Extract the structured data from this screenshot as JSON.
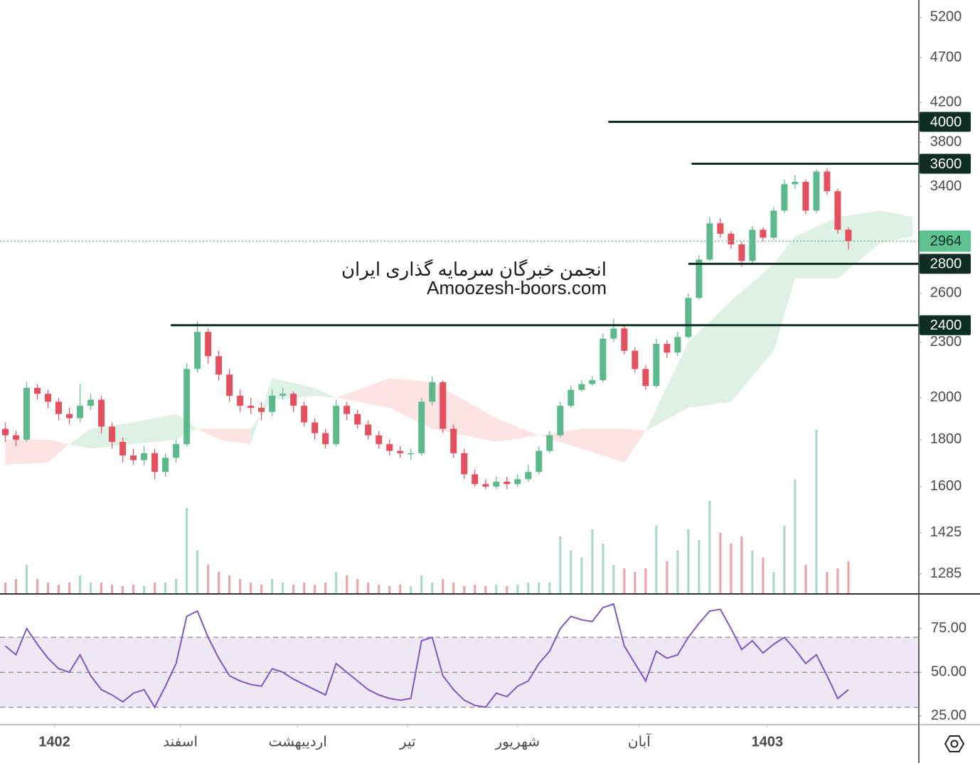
{
  "chart_data": {
    "type": "candlestick",
    "watermark": [
      "انجمن خبرگان سرمایه گذاری ایران",
      "Amoozesh-boors.com"
    ],
    "log_scale": true,
    "ylim": [
      1224,
      5432
    ],
    "yticks": [
      5200,
      4700,
      4200,
      3800,
      3400,
      2600,
      2300,
      2000,
      1800,
      1600,
      1425,
      1285
    ],
    "xlim": [
      -0.5,
      85.6
    ],
    "xticks": [
      {
        "value": 4.6,
        "label": "1402"
      },
      {
        "value": 16.4,
        "label": "اسفند"
      },
      {
        "value": 27.4,
        "label": "اردیبهشت"
      },
      {
        "value": 37.7,
        "label": "تیر"
      },
      {
        "value": 48,
        "label": "شهریور"
      },
      {
        "value": 59.4,
        "label": "آبان"
      },
      {
        "value": 71.4,
        "label": "1403"
      }
    ],
    "up_color": "#5bb98c",
    "down_color": "#e5505f",
    "open": [
      1850,
      1820,
      1800,
      2050,
      2020,
      1980,
      1920,
      1900,
      1960,
      1990,
      1860,
      1790,
      1730,
      1710,
      1740,
      1660,
      1720,
      1780,
      2150,
      2360,
      2220,
      2120,
      2010,
      1960,
      1950,
      1930,
      2010,
      2020,
      1960,
      1880,
      1830,
      1780,
      1960,
      1920,
      1870,
      1820,
      1780,
      1750,
      1740,
      1740,
      1980,
      2080,
      1850,
      1740,
      1650,
      1610,
      1600,
      1620,
      1610,
      1630,
      1660,
      1750,
      1820,
      1960,
      2040,
      2070,
      2090,
      2320,
      2380,
      2250,
      2150,
      2060,
      2290,
      2240,
      2330,
      2570,
      2830,
      3100,
      3020,
      2940,
      2820,
      3050,
      2990,
      3200,
      3420,
      3440,
      3200,
      3530,
      3360,
      3050
    ],
    "high": [
      1880,
      1840,
      2080,
      2070,
      2040,
      2000,
      1950,
      2070,
      2020,
      2010,
      1880,
      1810,
      1760,
      1770,
      1760,
      1740,
      1800,
      2180,
      2420,
      2380,
      2250,
      2150,
      2040,
      2000,
      1980,
      2040,
      2050,
      2030,
      1980,
      1900,
      1850,
      1990,
      1980,
      1940,
      1890,
      1840,
      1800,
      1770,
      1760,
      2000,
      2110,
      2090,
      1870,
      1760,
      1670,
      1630,
      1640,
      1640,
      1650,
      1690,
      1770,
      1840,
      1980,
      2060,
      2090,
      2110,
      2350,
      2440,
      2400,
      2270,
      2170,
      2320,
      2310,
      2360,
      2600,
      2860,
      3150,
      3140,
      3040,
      2960,
      3080,
      3070,
      3230,
      3460,
      3500,
      3460,
      3550,
      3560,
      3380,
      3070
    ],
    "low": [
      1790,
      1770,
      1790,
      1990,
      1950,
      1890,
      1870,
      1880,
      1940,
      1830,
      1760,
      1700,
      1690,
      1690,
      1630,
      1640,
      1700,
      1770,
      2130,
      2180,
      2090,
      1980,
      1930,
      1920,
      1890,
      1910,
      1990,
      1930,
      1860,
      1800,
      1760,
      1770,
      1890,
      1850,
      1800,
      1760,
      1730,
      1720,
      1710,
      1730,
      1960,
      1830,
      1720,
      1630,
      1600,
      1590,
      1590,
      1590,
      1600,
      1620,
      1650,
      1740,
      1810,
      1950,
      2030,
      2060,
      2080,
      2300,
      2230,
      2130,
      2040,
      2050,
      2210,
      2220,
      2320,
      2560,
      2820,
      2990,
      2910,
      2780,
      2800,
      2960,
      2970,
      3180,
      3380,
      3170,
      3180,
      3330,
      3020,
      2900
    ],
    "close": [
      1820,
      1800,
      2050,
      2020,
      1980,
      1920,
      1900,
      1960,
      1990,
      1860,
      1790,
      1730,
      1710,
      1740,
      1660,
      1720,
      1780,
      2150,
      2360,
      2220,
      2120,
      2010,
      1960,
      1950,
      1930,
      2010,
      2020,
      1960,
      1880,
      1830,
      1780,
      1960,
      1920,
      1870,
      1820,
      1780,
      1750,
      1740,
      1740,
      1980,
      2080,
      1850,
      1740,
      1650,
      1610,
      1600,
      1620,
      1610,
      1630,
      1660,
      1750,
      1820,
      1960,
      2040,
      2070,
      2090,
      2320,
      2380,
      2250,
      2150,
      2060,
      2290,
      2240,
      2330,
      2570,
      2830,
      3100,
      3020,
      2940,
      2820,
      3050,
      2990,
      3200,
      3420,
      3440,
      3200,
      3530,
      3360,
      3050,
      2964
    ],
    "volume": [
      15,
      20,
      40,
      20,
      15,
      12,
      15,
      25,
      15,
      15,
      12,
      10,
      12,
      10,
      15,
      15,
      20,
      120,
      60,
      40,
      30,
      25,
      20,
      15,
      12,
      20,
      15,
      12,
      15,
      12,
      15,
      30,
      25,
      20,
      15,
      12,
      10,
      12,
      10,
      25,
      15,
      20,
      15,
      10,
      12,
      10,
      12,
      10,
      12,
      15,
      15,
      15,
      80,
      60,
      50,
      90,
      70,
      40,
      35,
      30,
      35,
      95,
      45,
      60,
      90,
      75,
      130,
      85,
      70,
      80,
      60,
      50,
      30,
      95,
      160,
      40,
      230,
      30,
      35,
      45
    ],
    "cloud": {
      "x": [
        0,
        4,
        6,
        8,
        12,
        16,
        18,
        20,
        23,
        25,
        29,
        31,
        36,
        40,
        46,
        50,
        54,
        58,
        60,
        64,
        68,
        72,
        74,
        78,
        82,
        85
      ],
      "span_a": [
        1690,
        1700,
        1780,
        1850,
        1880,
        1920,
        1850,
        1800,
        1780,
        2100,
        2050,
        2000,
        1950,
        1850,
        1790,
        1820,
        1760,
        1700,
        1840,
        2300,
        2550,
        2800,
        3000,
        3150,
        3200,
        3150
      ],
      "span_b": [
        1800,
        1800,
        1780,
        1760,
        1780,
        1800,
        1850,
        1850,
        1850,
        1990,
        2010,
        2000,
        2100,
        2080,
        1900,
        1820,
        1850,
        1850,
        1840,
        1950,
        1980,
        2250,
        2700,
        2700,
        2950,
        3000
      ],
      "up_color": "#dff1e4",
      "down_color": "#fde3e3"
    },
    "levels": [
      {
        "value": 4000,
        "from": 56.5
      },
      {
        "value": 3600,
        "from": 64.3
      },
      {
        "value": 2800,
        "from": 64
      },
      {
        "value": 2400,
        "from": 15.5
      }
    ],
    "level_color": "#0e2e25",
    "last_price": 2964,
    "last_price_color": "#5cc28f",
    "rsi": {
      "values": [
        65,
        60,
        75,
        66,
        58,
        52,
        50,
        60,
        48,
        40,
        37,
        33,
        38,
        40,
        30,
        42,
        55,
        82,
        85,
        70,
        58,
        48,
        45,
        43,
        42,
        52,
        50,
        46,
        43,
        40,
        37,
        55,
        50,
        45,
        40,
        37,
        35,
        34,
        35,
        68,
        70,
        48,
        40,
        34,
        31,
        30,
        38,
        36,
        42,
        45,
        55,
        62,
        75,
        82,
        80,
        79,
        87,
        89,
        65,
        55,
        45,
        62,
        58,
        60,
        70,
        78,
        85,
        86,
        75,
        63,
        68,
        61,
        66,
        70,
        63,
        55,
        60,
        48,
        35,
        40
      ],
      "color": "#7e57c2",
      "ylim": [
        20,
        94
      ],
      "yticks": [
        {
          "value": 75,
          "label": "75.00"
        },
        {
          "value": 50,
          "label": "50.00"
        },
        {
          "value": 25,
          "label": "25.00"
        }
      ],
      "band": [
        30,
        70
      ],
      "band_color": "#ede7f6",
      "dashed": [
        70,
        50,
        30
      ]
    }
  }
}
